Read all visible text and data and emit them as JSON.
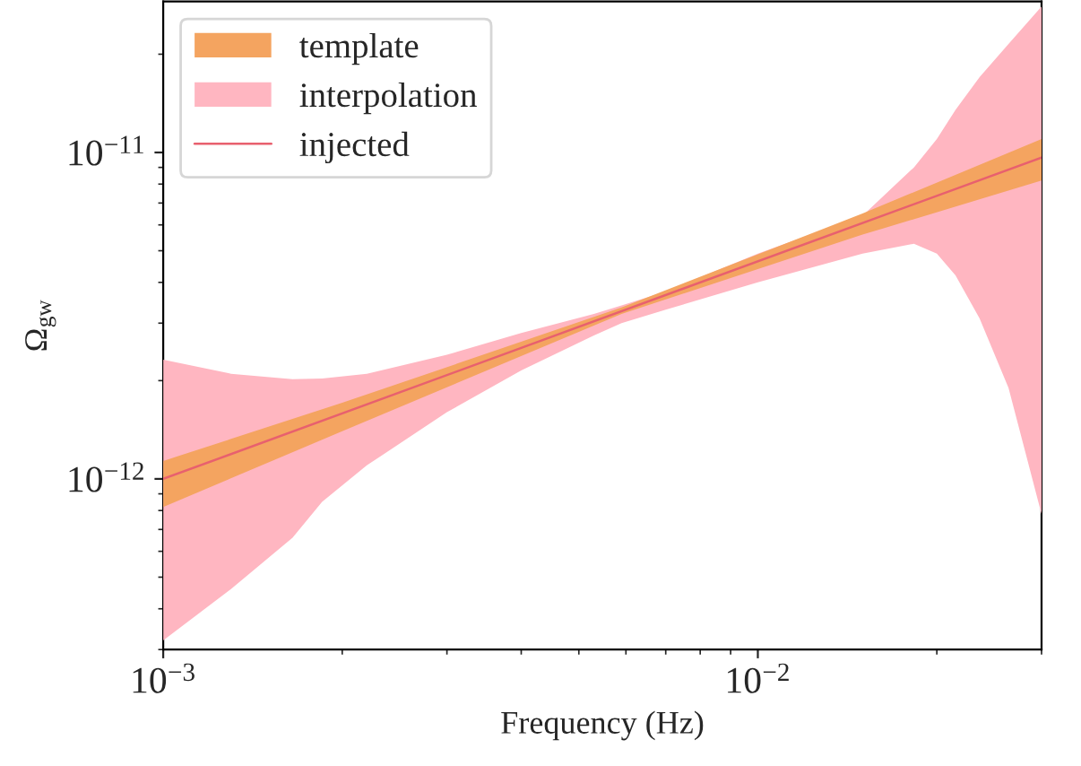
{
  "chart_data": {
    "type": "area",
    "xlabel": "Frequency (Hz)",
    "ylabel": "Ω$_{gw}$",
    "log": "xy",
    "xlim": [
      0.001,
      0.03
    ],
    "xticks": [
      {
        "value": 0.001,
        "label": "10$^{−3}$"
      },
      {
        "value": 0.01,
        "label": "10$^{−2}$"
      }
    ],
    "ylim": [
      3e-13,
      2.9e-11
    ],
    "yticks": [
      {
        "value": 1e-12,
        "label": "10$^{−12}$"
      },
      {
        "value": 1e-11,
        "label": "10$^{−11}$"
      }
    ],
    "grid": false,
    "legend": "top left",
    "series": [
      {
        "name": "template",
        "type": "area",
        "color": "#f4a460",
        "x": [
          0.001,
          0.002,
          0.0059,
          0.015,
          0.03
        ],
        "values": [
          null,
          null,
          null,
          null,
          null
        ],
        "lower": [
          8.2e-13,
          1.4e-12,
          3.2e-12,
          5.6e-12,
          8.2e-12
        ],
        "upper": [
          1.135e-12,
          1.71e-12,
          3.35e-12,
          6.5e-12,
          1.1e-11
        ]
      },
      {
        "name": "interpolation",
        "type": "area",
        "color": "#ffb6c1",
        "x": [
          0.001,
          0.0013,
          0.00165,
          0.00185,
          0.0022,
          0.003,
          0.004,
          0.0053,
          0.0059,
          0.007,
          0.01,
          0.015,
          0.0183,
          0.02,
          0.0215,
          0.0236,
          0.0264,
          0.03
        ],
        "values": [
          null,
          null,
          null,
          null,
          null,
          null,
          null,
          null,
          null,
          null,
          null,
          null,
          null,
          null,
          null,
          null,
          null,
          null
        ],
        "lower": [
          3.2e-13,
          4.6e-13,
          6.6e-13,
          8.5e-13,
          1.1e-12,
          1.6e-12,
          2.15e-12,
          2.75e-12,
          3e-12,
          3.3e-12,
          4e-12,
          4.9e-12,
          5.25e-12,
          4.9e-12,
          4.2e-12,
          3.1e-12,
          1.9e-12,
          7.8e-13
        ],
        "upper": [
          2.32e-12,
          2.1e-12,
          2.02e-12,
          2.03e-12,
          2.1e-12,
          2.4e-12,
          2.8e-12,
          3.2e-12,
          3.4e-12,
          3.75e-12,
          4.9e-12,
          6.4e-12,
          9e-12,
          1.1e-11,
          1.35e-11,
          1.7e-11,
          2.15e-11,
          2.8e-11
        ]
      },
      {
        "name": "injected",
        "type": "line",
        "color": "#e8606e",
        "x": [
          0.001,
          0.03
        ],
        "values": [
          1e-12,
          9.65e-12
        ]
      }
    ]
  }
}
